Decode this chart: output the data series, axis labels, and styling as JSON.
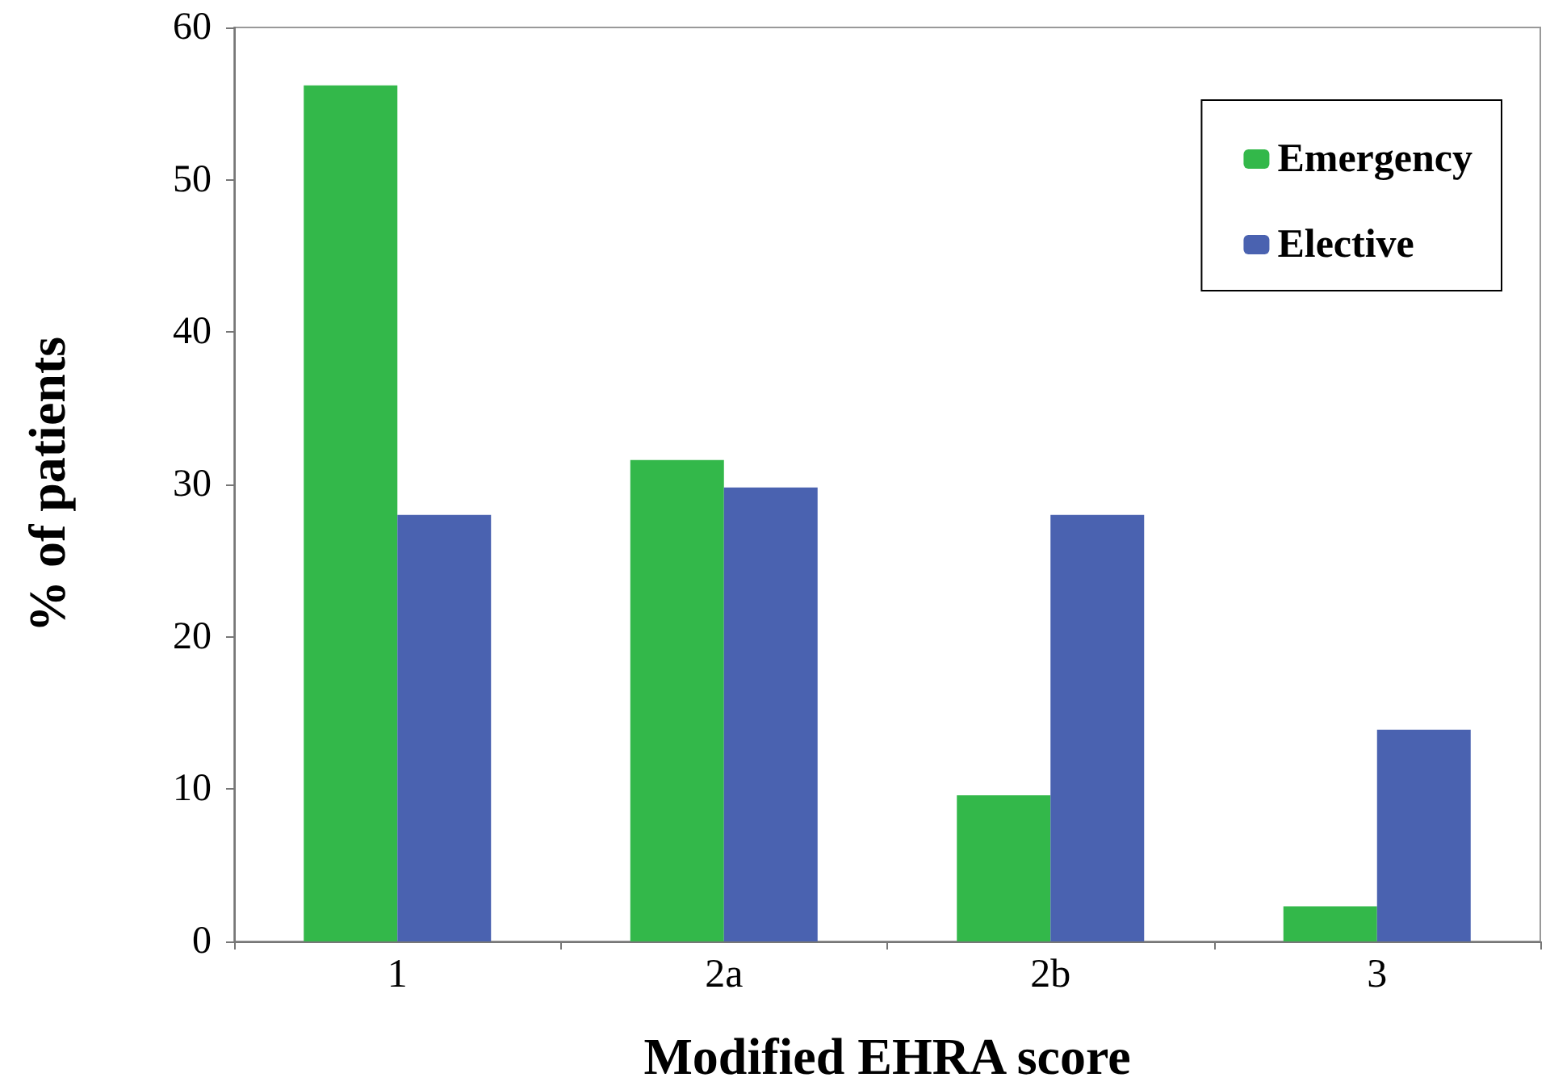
{
  "chart_data": {
    "type": "bar",
    "xlabel": "Modified EHRA score",
    "ylabel": "% of patients",
    "categories": [
      "1",
      "2a",
      "2b",
      "3"
    ],
    "series": [
      {
        "name": "Emergency",
        "color": "#33b84a",
        "values": [
          56.2,
          31.6,
          9.6,
          2.3
        ]
      },
      {
        "name": "Elective",
        "color": "#4a62b0",
        "values": [
          28.0,
          29.8,
          28.0,
          13.9
        ]
      }
    ],
    "ylim": [
      0,
      60
    ],
    "yticks": [
      0,
      10,
      20,
      30,
      40,
      50,
      60
    ],
    "grid": false,
    "legend": "top right"
  }
}
